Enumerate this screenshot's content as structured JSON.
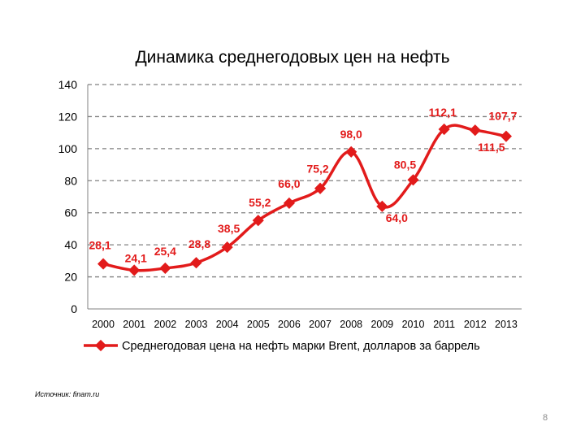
{
  "chart_data": {
    "type": "line",
    "title": "Динамика среднегодовых цен на нефть",
    "x": [
      "2000",
      "2001",
      "2002",
      "2003",
      "2004",
      "2005",
      "2006",
      "2007",
      "2008",
      "2009",
      "2010",
      "2011",
      "2012",
      "2013"
    ],
    "series": [
      {
        "name": "Среднегодовая цена на нефть марки Brent, долларов за баррель",
        "values": [
          28.1,
          24.1,
          25.4,
          28.8,
          38.5,
          55.2,
          66.0,
          75.2,
          98.0,
          64.0,
          80.5,
          112.1,
          111.5,
          107.7
        ],
        "labels": [
          "28,1",
          "24,1",
          "25,4",
          "28,8",
          "38,5",
          "55,2",
          "66,0",
          "75,2",
          "98,0",
          "64,0",
          "80,5",
          "112,1",
          "111,5",
          "107,7"
        ],
        "color": "#e21b1b"
      }
    ],
    "ylim": [
      0,
      140
    ],
    "yticks": [
      0,
      20,
      40,
      60,
      80,
      100,
      120,
      140
    ],
    "grid": "horizontal-dashed",
    "legend_position": "bottom"
  },
  "footer": {
    "source": "Источник: finam.ru",
    "page_number": "8"
  }
}
